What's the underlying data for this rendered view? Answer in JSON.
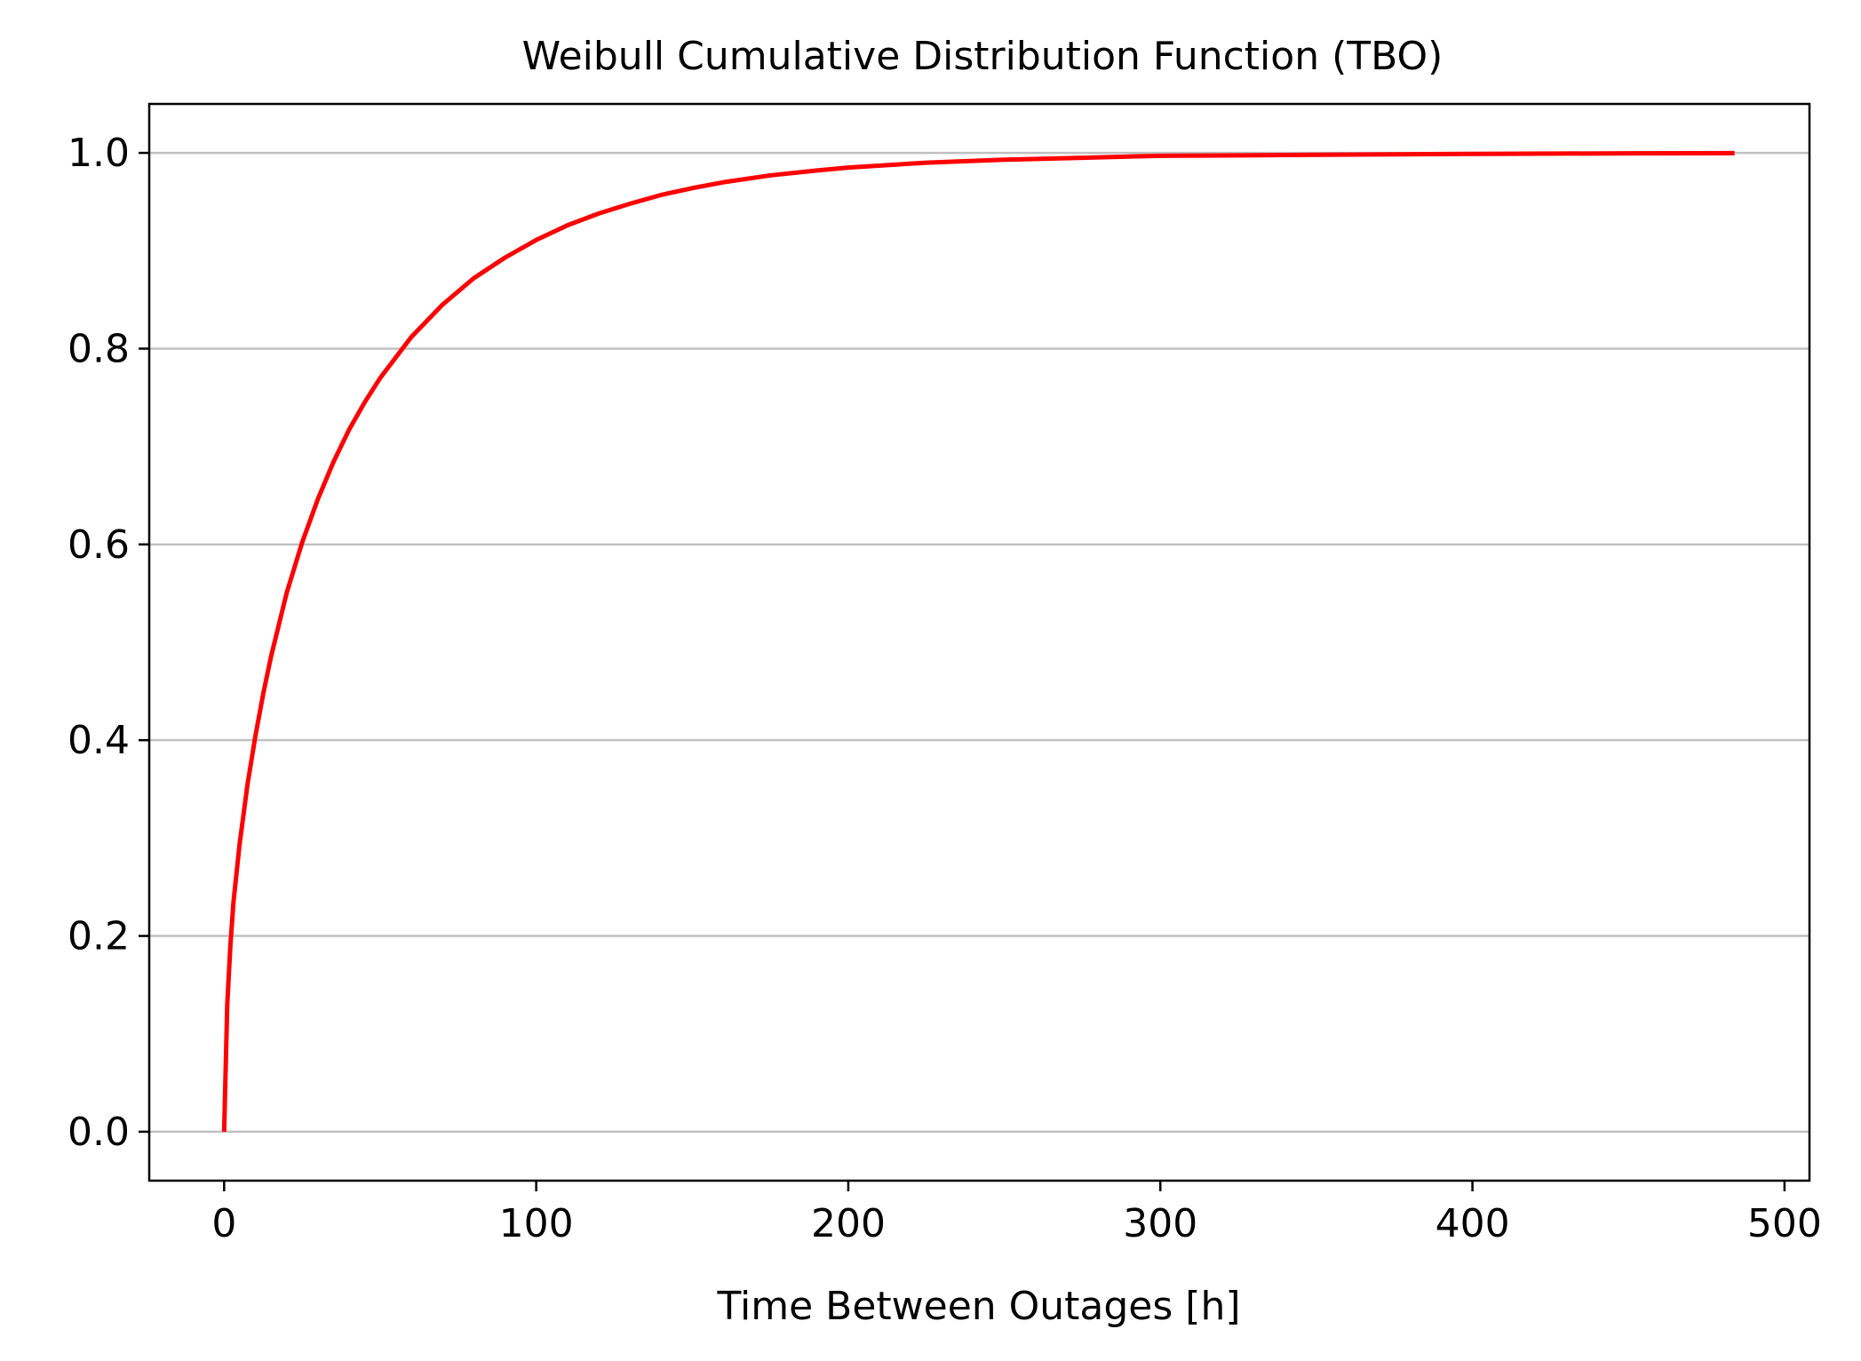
{
  "chart_data": {
    "type": "line",
    "title": "Weibull Cumulative Distribution Function (TBO)",
    "xlabel": "Time Between Outages [h]",
    "ylabel": "",
    "xlim": [
      -24,
      508
    ],
    "ylim": [
      -0.05,
      1.05
    ],
    "xticks": [
      0,
      100,
      200,
      300,
      400,
      500
    ],
    "xtick_labels": [
      "0",
      "100",
      "200",
      "300",
      "400",
      "500"
    ],
    "yticks": [
      0.0,
      0.2,
      0.4,
      0.6,
      0.8,
      1.0
    ],
    "ytick_labels": [
      "0.0",
      "0.2",
      "0.4",
      "0.6",
      "0.8",
      "1.0"
    ],
    "grid": "horizontal",
    "legend": "none",
    "series": [
      {
        "color": "#ff0000",
        "x": [
          0,
          1,
          2,
          3,
          5,
          7.5,
          10,
          12.5,
          15,
          20,
          25,
          30,
          35,
          40,
          45,
          50,
          60,
          70,
          80,
          90,
          100,
          110,
          120,
          130,
          140,
          150,
          160,
          175,
          190,
          200,
          225,
          250,
          275,
          300,
          350,
          400,
          450,
          484
        ],
        "y": [
          0.0,
          0.13,
          0.19,
          0.235,
          0.295,
          0.355,
          0.404,
          0.447,
          0.485,
          0.55,
          0.602,
          0.646,
          0.684,
          0.717,
          0.745,
          0.77,
          0.812,
          0.845,
          0.872,
          0.893,
          0.911,
          0.926,
          0.938,
          0.948,
          0.957,
          0.964,
          0.97,
          0.977,
          0.982,
          0.985,
          0.99,
          0.993,
          0.995,
          0.997,
          0.998,
          0.999,
          0.9995,
          0.9997
        ]
      }
    ]
  },
  "colors": {
    "line": "#ff0000",
    "grid": "#c0c0c0",
    "axes": "#000000",
    "background": "#ffffff"
  }
}
